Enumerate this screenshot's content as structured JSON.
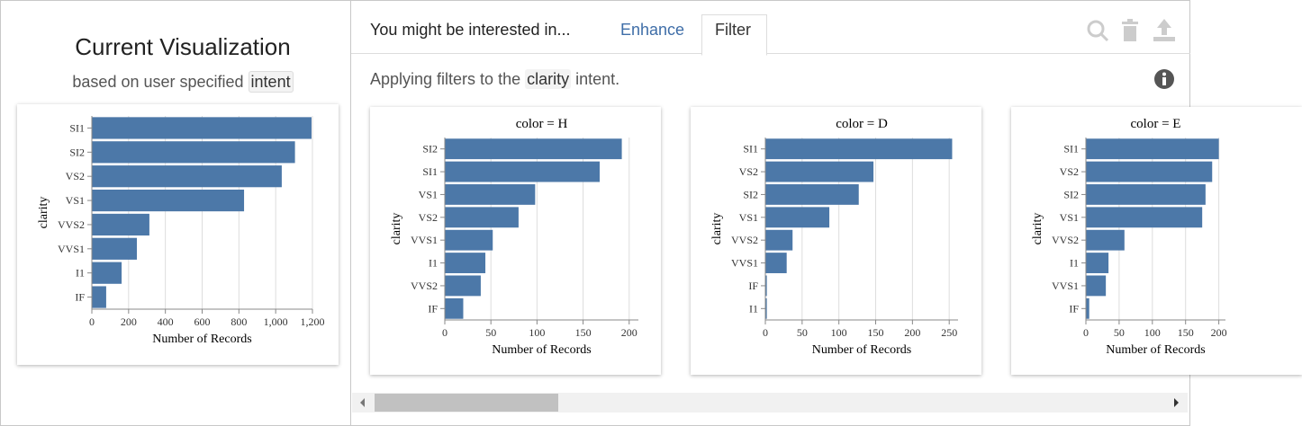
{
  "left_panel": {
    "title": "Current Visualization",
    "subtitle": "based on user specified",
    "subtitle_code": "intent"
  },
  "tabs": {
    "heading": "You might be interested in...",
    "items": [
      "Enhance",
      "Filter"
    ]
  },
  "description": {
    "before": "Applying filters to the",
    "code": "clarity",
    "after": "intent."
  },
  "chart_data": [
    {
      "type": "bar",
      "orientation": "horizontal",
      "x_label": "Number of Records",
      "y_label": "clarity",
      "categories": [
        "SI1",
        "SI2",
        "VS2",
        "VS1",
        "VVS2",
        "VVS1",
        "I1",
        "IF"
      ],
      "values": [
        1195,
        1105,
        1033,
        828,
        313,
        245,
        162,
        78
      ],
      "color": "#4c78a8",
      "xlim": [
        0,
        1200
      ],
      "xticks": [
        0,
        200,
        400,
        600,
        800,
        {
          "value": 1000,
          "label": "1,000"
        },
        {
          "value": 1200,
          "label": "1,200"
        }
      ],
      "grid": true
    },
    {
      "type": "bar",
      "orientation": "horizontal",
      "title": "color = H",
      "x_label": "Number of Records",
      "y_label": "clarity",
      "categories": [
        "SI2",
        "SI1",
        "VS1",
        "VS2",
        "VVS1",
        "I1",
        "VVS2",
        "IF"
      ],
      "values": [
        192,
        168,
        98,
        80,
        52,
        44,
        39,
        20
      ],
      "color": "#4c78a8",
      "xlim": [
        0,
        210
      ],
      "xticks": [
        0,
        50,
        100,
        150,
        200
      ],
      "grid": true
    },
    {
      "type": "bar",
      "orientation": "horizontal",
      "title": "color = D",
      "x_label": "Number of Records",
      "y_label": "clarity",
      "categories": [
        "SI1",
        "VS2",
        "SI2",
        "VS1",
        "VVS2",
        "VVS1",
        "IF",
        "I1"
      ],
      "values": [
        254,
        147,
        127,
        87,
        37,
        29,
        2,
        2
      ],
      "color": "#4c78a8",
      "xlim": [
        0,
        262
      ],
      "xticks": [
        0,
        50,
        100,
        150,
        200,
        250
      ],
      "grid": true
    },
    {
      "type": "bar",
      "orientation": "horizontal",
      "title": "color = E",
      "x_label": "Number of Records",
      "y_label": "clarity",
      "categories": [
        "SI1",
        "VS2",
        "SI2",
        "VS1",
        "VVS2",
        "I1",
        "VVS1",
        "IF"
      ],
      "values": [
        200,
        190,
        180,
        175,
        58,
        34,
        30,
        5
      ],
      "color": "#4c78a8",
      "xlim": [
        0,
        210
      ],
      "xticks": [
        0,
        50,
        100,
        150,
        200
      ],
      "grid": true
    }
  ]
}
